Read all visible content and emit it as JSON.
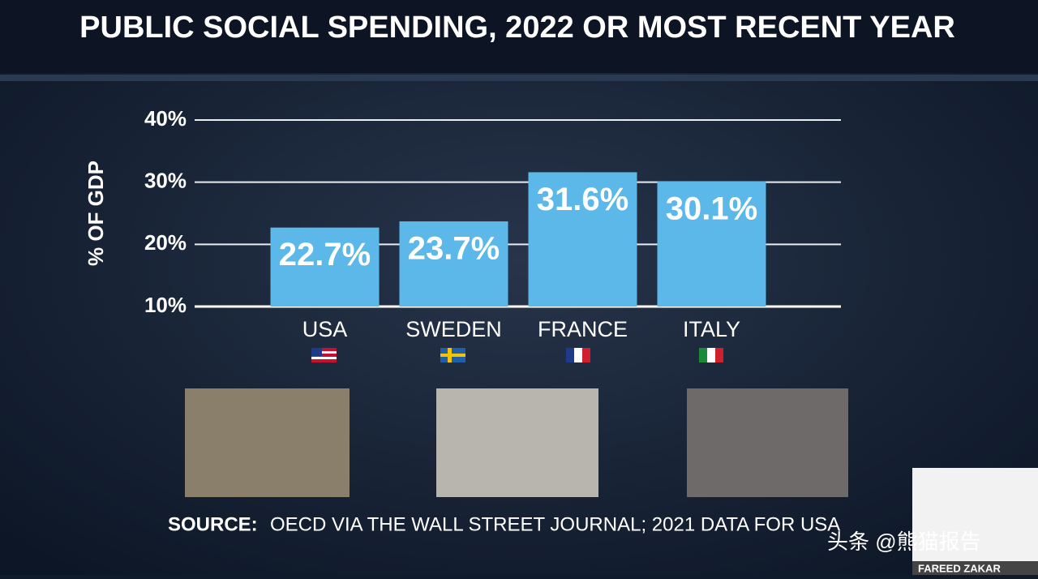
{
  "chart_data": {
    "type": "bar",
    "title": "PUBLIC SOCIAL SPENDING, 2022 OR MOST RECENT YEAR",
    "y_label": "% OF GDP",
    "categories": [
      "USA",
      "SWEDEN",
      "FRANCE",
      "ITALY"
    ],
    "values": [
      22.7,
      23.7,
      31.6,
      30.1
    ],
    "value_labels": [
      "22.7%",
      "23.7%",
      "31.6%",
      "30.1%"
    ],
    "color": "#5bb8e8",
    "ylim": [
      10,
      40
    ],
    "yticks": [
      {
        "value": 10,
        "label": "10%"
      },
      {
        "value": 20,
        "label": "20%"
      },
      {
        "value": 30,
        "label": "30%"
      },
      {
        "value": 40,
        "label": "40%"
      }
    ],
    "grid": true,
    "source_label": "SOURCE:",
    "source": "OECD VIA THE WALL STREET JOURNAL; 2021 DATA FOR USA"
  },
  "watermark": "头条 @熊猫报告",
  "anchor_name": "FAREED ZAKAR"
}
